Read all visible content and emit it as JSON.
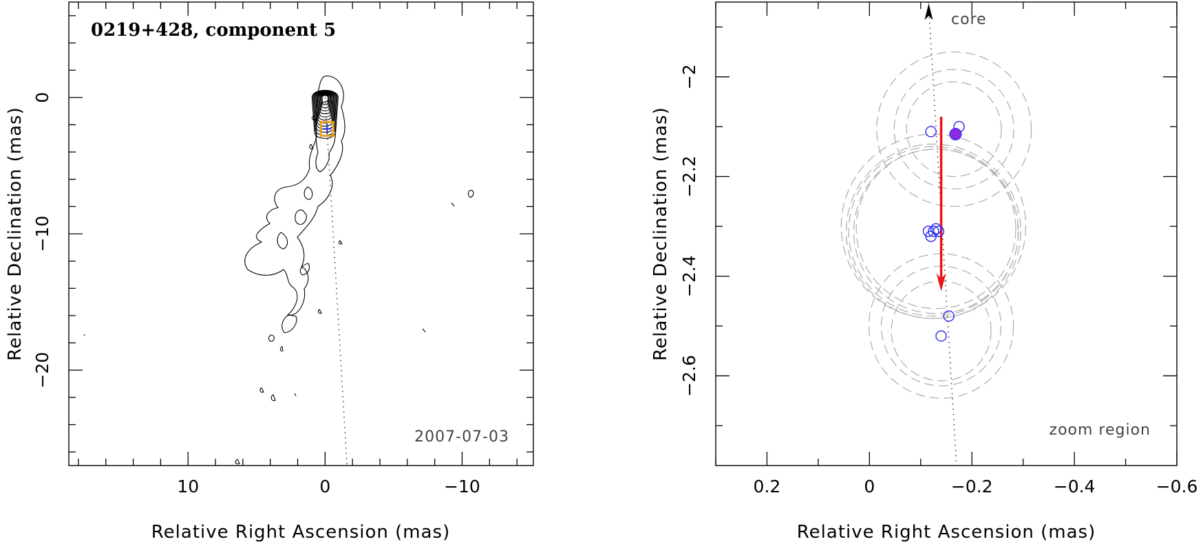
{
  "colors": {
    "contour": "#000000",
    "component_marker": "#e8a020",
    "component_cross": "#2a2ad8",
    "epoch_marker": "#3333ee",
    "highlight_marker": "#8a2be2",
    "motion_arrow": "#ee1111",
    "error_circle": "#b0b0b0",
    "jet_axis": "#333333"
  },
  "chart_data": [
    {
      "type": "contour",
      "title": "0219+428, component 5",
      "annotation": "2007-07-03",
      "xlabel": "Relative Right Ascension (mas)",
      "ylabel": "Relative Declination (mas)",
      "xlim": [
        18.7,
        -15.2
      ],
      "ylim": [
        -27.0,
        7.0
      ],
      "x_reversed": true,
      "x_ticks": [
        "10",
        "0",
        "−10"
      ],
      "y_ticks": [
        "0",
        "−10",
        "−20"
      ],
      "core": {
        "x": 0.0,
        "y": 0.0
      },
      "component_5": {
        "x": -0.15,
        "y": -2.3
      },
      "jet_axis_end": {
        "x": -1.6,
        "y": -27.0
      },
      "contour_levels": 12
    },
    {
      "type": "scatter",
      "annotation": "zoom region",
      "core_label": "core",
      "xlabel": "Relative Right Ascension (mas)",
      "ylabel": "Relative Declination (mas)",
      "xlim": [
        0.3,
        -0.6
      ],
      "ylim": [
        -2.78,
        -1.85
      ],
      "x_reversed": true,
      "x_ticks": [
        "0.2",
        "0",
        "−0.2",
        "−0.4",
        "−0.6"
      ],
      "y_ticks": [
        "−2",
        "−2.2",
        "−2.4",
        "−2.6"
      ],
      "series": [
        {
          "marker": "open-circle",
          "points": [
            {
              "x": -0.12,
              "y": -2.11
            },
            {
              "x": -0.175,
              "y": -2.1
            },
            {
              "x": -0.115,
              "y": -2.31
            },
            {
              "x": -0.12,
              "y": -2.32
            },
            {
              "x": -0.125,
              "y": -2.31
            },
            {
              "x": -0.13,
              "y": -2.305
            },
            {
              "x": -0.135,
              "y": -2.31
            },
            {
              "x": -0.155,
              "y": -2.48
            },
            {
              "x": -0.14,
              "y": -2.52
            }
          ]
        },
        {
          "marker": "filled-circle",
          "points": [
            {
              "x": -0.168,
              "y": -2.115
            }
          ]
        }
      ],
      "error_circles": [
        {
          "x": -0.165,
          "y": -2.105,
          "r": 0.155
        },
        {
          "x": -0.165,
          "y": -2.105,
          "r": 0.12
        },
        {
          "x": -0.165,
          "y": -2.105,
          "r": 0.095
        },
        {
          "x": -0.125,
          "y": -2.3,
          "r": 0.185
        },
        {
          "x": -0.125,
          "y": -2.31,
          "r": 0.17
        },
        {
          "x": -0.125,
          "y": -2.31,
          "r": 0.175
        },
        {
          "x": -0.13,
          "y": -2.31,
          "r": 0.165
        },
        {
          "x": -0.13,
          "y": -2.305,
          "r": 0.16
        },
        {
          "x": -0.14,
          "y": -2.5,
          "r": 0.145
        },
        {
          "x": -0.14,
          "y": -2.5,
          "r": 0.12
        },
        {
          "x": -0.14,
          "y": -2.51,
          "r": 0.1
        }
      ],
      "motion_vector": {
        "x0": -0.14,
        "y0": -2.08,
        "x1": -0.14,
        "y1": -2.43
      },
      "jet_axis": {
        "x0": -0.115,
        "y0": -1.85,
        "x1": -0.17,
        "y1": -2.78
      }
    }
  ]
}
